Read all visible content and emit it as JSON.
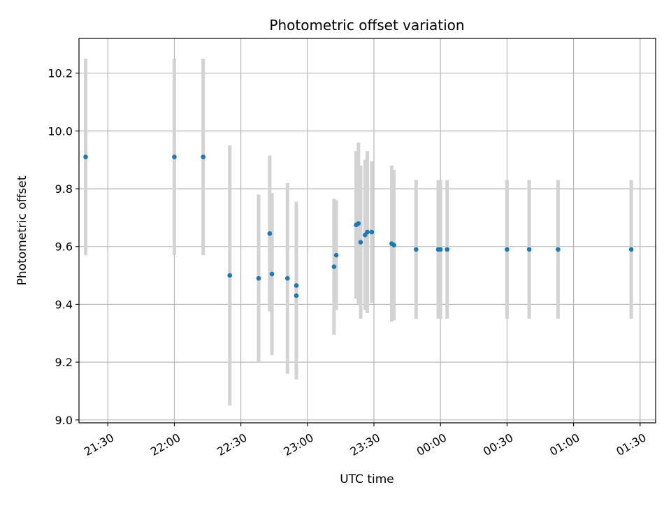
{
  "chart_data": {
    "type": "scatter",
    "title": "Photometric offset variation",
    "xlabel": "UTC time",
    "ylabel": "Photometric offset",
    "x_axis_kind": "time",
    "x_tick_labels": [
      "21:30",
      "22:00",
      "22:30",
      "23:00",
      "23:30",
      "00:00",
      "00:30",
      "01:00",
      "01:30"
    ],
    "x_tick_values": [
      "21:30",
      "22:00",
      "22:30",
      "23:00",
      "23:30",
      "00:00",
      "00:30",
      "01:00",
      "01:30"
    ],
    "xlim": [
      "21:17",
      "01:37"
    ],
    "y_tick_labels": [
      "9.0",
      "9.2",
      "9.4",
      "9.6",
      "9.8",
      "10.0",
      "10.2"
    ],
    "y_tick_values": [
      9.0,
      9.2,
      9.4,
      9.6,
      9.8,
      10.0,
      10.2
    ],
    "ylim": [
      8.99,
      10.32
    ],
    "grid": true,
    "colors": {
      "point": "#1f77b4",
      "errorbar": "#d3d3d3",
      "grid": "#b0b0b0"
    },
    "series": [
      {
        "points": [
          {
            "x": "21:20",
            "y": 9.91,
            "err": 0.34
          },
          {
            "x": "22:00",
            "y": 9.91,
            "err": 0.34
          },
          {
            "x": "22:13",
            "y": 9.91,
            "err": 0.34
          },
          {
            "x": "22:25",
            "y": 9.5,
            "err": 0.45
          },
          {
            "x": "22:38",
            "y": 9.49,
            "err": 0.29
          },
          {
            "x": "22:43",
            "y": 9.645,
            "err": 0.27
          },
          {
            "x": "22:44",
            "y": 9.505,
            "err": 0.28
          },
          {
            "x": "22:51",
            "y": 9.49,
            "err": 0.33
          },
          {
            "x": "22:55",
            "y": 9.465,
            "err": 0.29
          },
          {
            "x": "22:55",
            "y": 9.43,
            "err": 0.29
          },
          {
            "x": "23:12",
            "y": 9.53,
            "err": 0.235
          },
          {
            "x": "23:13",
            "y": 9.57,
            "err": 0.19
          },
          {
            "x": "23:22",
            "y": 9.675,
            "err": 0.255
          },
          {
            "x": "23:23",
            "y": 9.68,
            "err": 0.28
          },
          {
            "x": "23:24",
            "y": 9.615,
            "err": 0.265
          },
          {
            "x": "23:26",
            "y": 9.64,
            "err": 0.26
          },
          {
            "x": "23:27",
            "y": 9.65,
            "err": 0.28
          },
          {
            "x": "23:29",
            "y": 9.65,
            "err": 0.245
          },
          {
            "x": "23:38",
            "y": 9.61,
            "err": 0.27
          },
          {
            "x": "23:39",
            "y": 9.605,
            "err": 0.26
          },
          {
            "x": "23:49",
            "y": 9.59,
            "err": 0.24
          },
          {
            "x": "23:59",
            "y": 9.59,
            "err": 0.24
          },
          {
            "x": "00:00",
            "y": 9.59,
            "err": 0.24
          },
          {
            "x": "00:03",
            "y": 9.59,
            "err": 0.24
          },
          {
            "x": "00:30",
            "y": 9.59,
            "err": 0.24
          },
          {
            "x": "00:40",
            "y": 9.59,
            "err": 0.24
          },
          {
            "x": "00:53",
            "y": 9.59,
            "err": 0.24
          },
          {
            "x": "01:26",
            "y": 9.59,
            "err": 0.24
          }
        ]
      }
    ]
  }
}
